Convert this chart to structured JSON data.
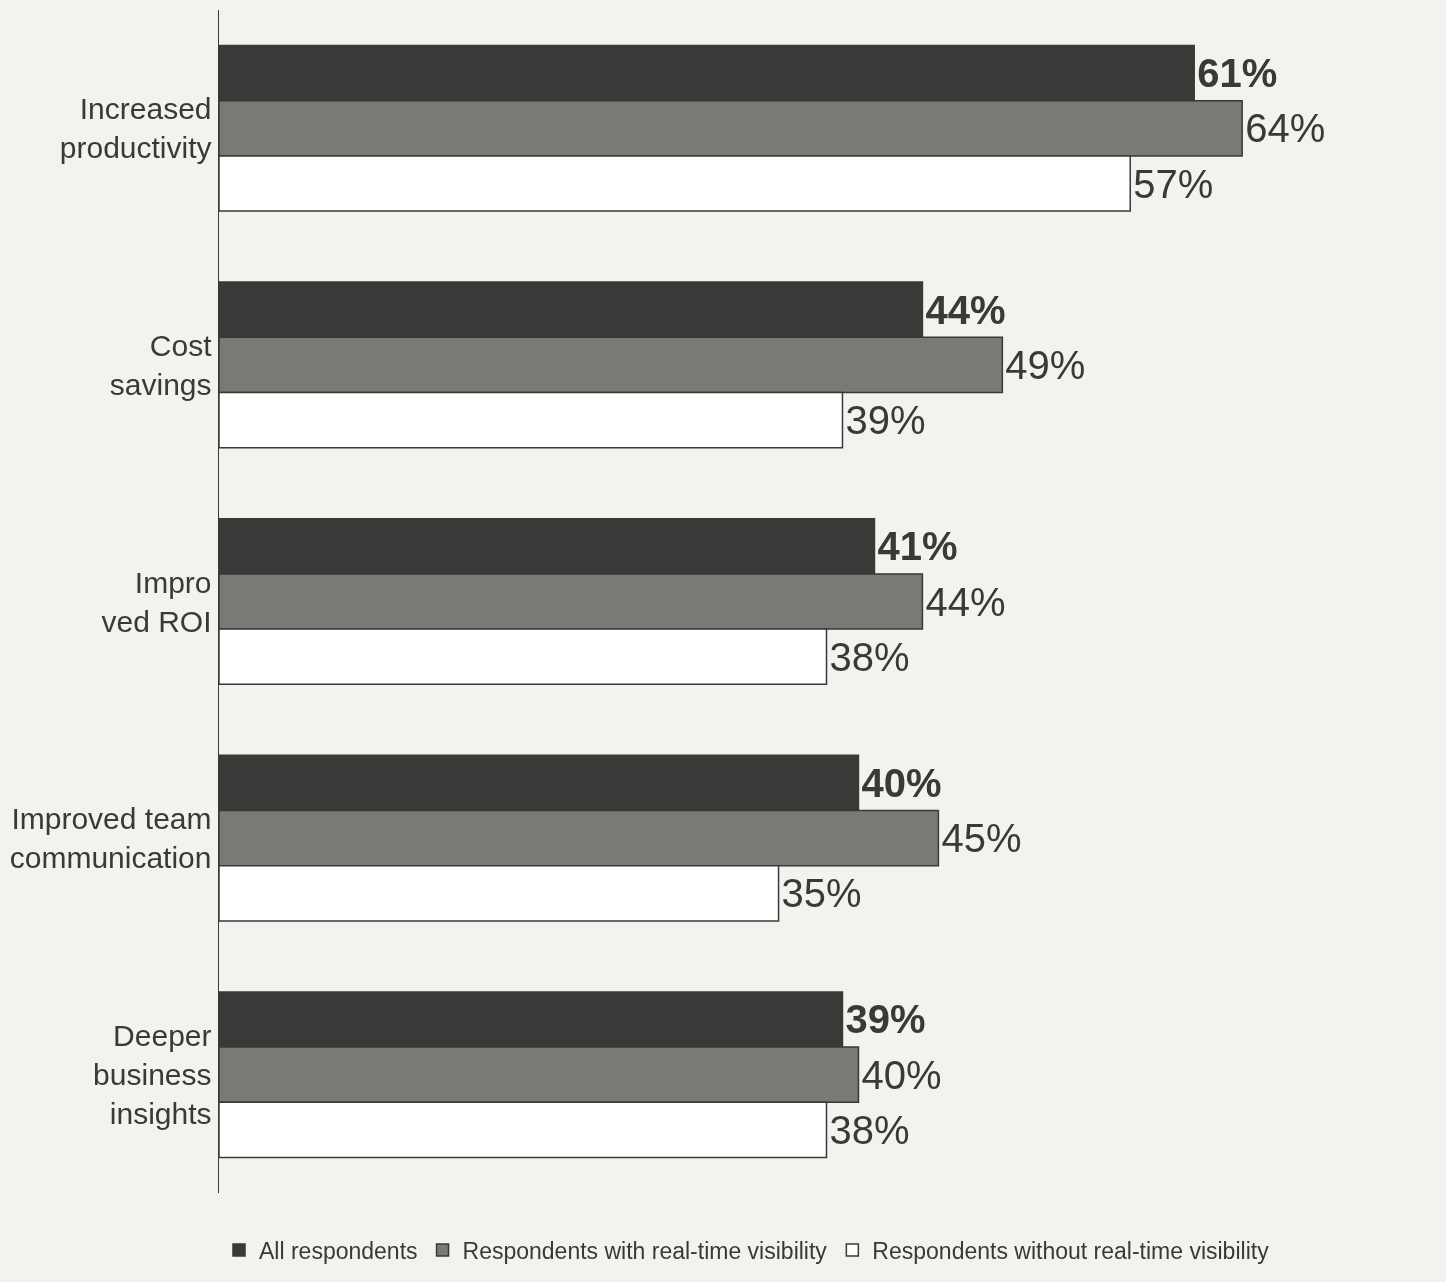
{
  "chart_data": {
    "type": "bar",
    "orientation": "horizontal",
    "categories": [
      "Increased\nproductivity",
      "Cost\nsavings",
      "Impro\nved ROI",
      "Improved team\ncommunication",
      "Deeper\nbusiness\ninsights"
    ],
    "series": [
      {
        "name": "All respondents",
        "color": "#3a3937",
        "values": [
          61,
          44,
          41,
          40,
          39
        ],
        "value_labels": [
          "61%",
          "44%",
          "41%",
          "40%",
          "39%"
        ]
      },
      {
        "name": "Respondents with real-time visibility",
        "color": "#7b7975",
        "values": [
          64,
          49,
          44,
          45,
          40
        ],
        "value_labels": [
          "64%",
          "49%",
          "44%",
          "45%",
          "40%"
        ]
      },
      {
        "name": "Respondents without real-time visibility",
        "color": "#ffffff",
        "values": [
          57,
          39,
          38,
          35,
          38
        ],
        "value_labels": [
          "57%",
          "39%",
          "38%",
          "35%",
          "38%"
        ]
      }
    ],
    "legend": "bottom",
    "grid": false
  }
}
